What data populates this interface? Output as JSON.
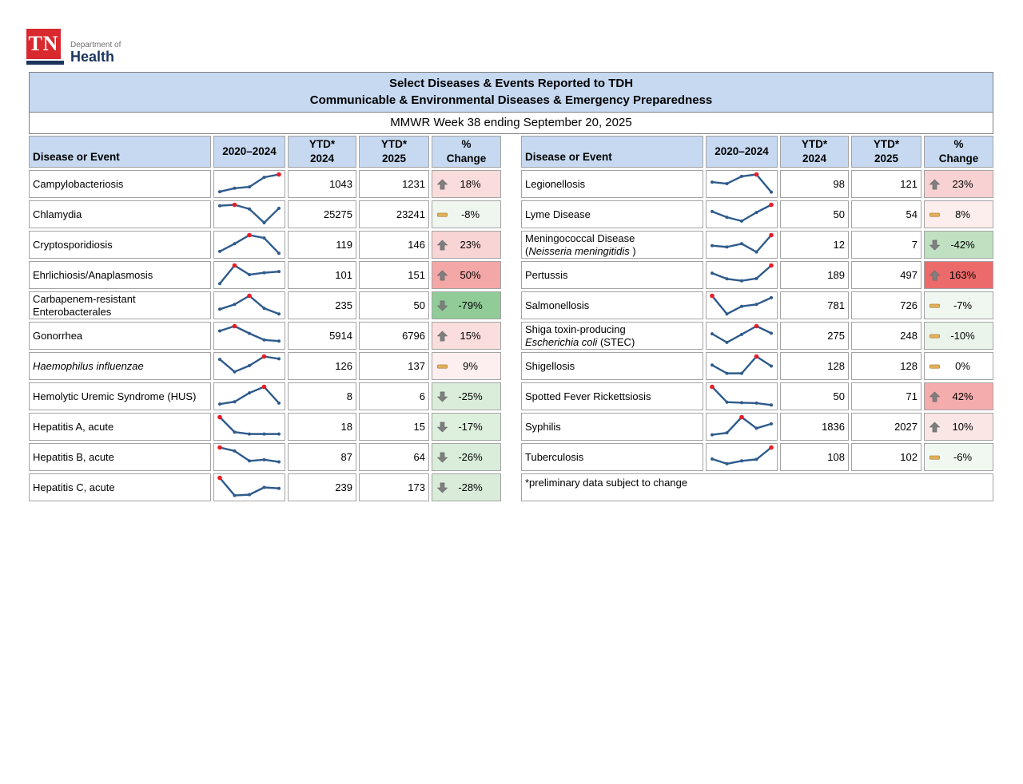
{
  "logo": {
    "tn": "TN",
    "dept": "Department of",
    "health": "Health"
  },
  "header": {
    "title_line1": "Select Diseases & Events Reported to TDH",
    "title_line2": "Communicable & Environmental Diseases & Emergency Preparedness",
    "subtitle": "MMWR Week 38 ending September 20, 2025"
  },
  "columns": {
    "disease": "Disease or Event",
    "spark": "2020–2024",
    "ytd_star": "YTD*",
    "y2024": "2024",
    "y2025": "2025",
    "pct_l1": "%",
    "pct_l2": "Change"
  },
  "footnote": "*preliminary data subject to change",
  "colors": {
    "header_blue": "#c6d9f1",
    "spark_line": "#2e5b8c",
    "spark_peak": "#eb1c24",
    "arrow_gray": "#7f7f7f",
    "arrow_edge": "#616161",
    "dash_fill": "#e2b05c",
    "dash_edge": "#b5873d",
    "logo_red": "#d8292f",
    "logo_navy": "#1b365d"
  },
  "tables": {
    "left": {
      "rows": [
        {
          "name_lines": [
            [
              {
                "t": "Campylobacteriosis",
                "i": false
              }
            ]
          ],
          "spark": [
            0.1,
            0.28,
            0.35,
            0.85,
            1.0
          ],
          "ytd2024": "1043",
          "ytd2025": "1231",
          "icon": "up",
          "pct": "18%",
          "bg": "#fadcdc"
        },
        {
          "name_lines": [
            [
              {
                "t": "Chlamydia",
                "i": false
              }
            ]
          ],
          "spark": [
            0.95,
            1.0,
            0.78,
            0.06,
            0.82
          ],
          "ytd2024": "25275",
          "ytd2025": "23241",
          "icon": "dash",
          "pct": "-8%",
          "bg": "#eff6f0"
        },
        {
          "name_lines": [
            [
              {
                "t": "Cryptosporidiosis",
                "i": false
              }
            ]
          ],
          "spark": [
            0.15,
            0.55,
            1.0,
            0.85,
            0.05
          ],
          "ytd2024": "119",
          "ytd2025": "146",
          "icon": "up",
          "pct": "23%",
          "bg": "#f9d4d4"
        },
        {
          "name_lines": [
            [
              {
                "t": "Ehrlichiosis/Anaplasmosis",
                "i": false
              }
            ]
          ],
          "spark": [
            0.05,
            1.0,
            0.52,
            0.62,
            0.68
          ],
          "ytd2024": "101",
          "ytd2025": "151",
          "icon": "up",
          "pct": "50%",
          "bg": "#f4a7a7"
        },
        {
          "name_lines": [
            [
              {
                "t": "Carbapenem-resistant",
                "i": false
              }
            ],
            [
              {
                "t": "Enterobacterales",
                "i": false
              }
            ]
          ],
          "spark": [
            0.3,
            0.55,
            1.0,
            0.35,
            0.05
          ],
          "ytd2024": "235",
          "ytd2025": "50",
          "icon": "down",
          "pct": "-79%",
          "bg": "#90cb98"
        },
        {
          "name_lines": [
            [
              {
                "t": "Gonorrhea",
                "i": false
              }
            ]
          ],
          "spark": [
            0.75,
            1.0,
            0.62,
            0.28,
            0.22
          ],
          "ytd2024": "5914",
          "ytd2025": "6796",
          "icon": "up",
          "pct": "15%",
          "bg": "#fadddd"
        },
        {
          "name_lines": [
            [
              {
                "t": "Haemophilus influenzae",
                "i": true
              }
            ]
          ],
          "spark": [
            0.85,
            0.2,
            0.52,
            1.0,
            0.88
          ],
          "ytd2024": "126",
          "ytd2025": "137",
          "icon": "dash",
          "pct": "9%",
          "bg": "#fdefef"
        },
        {
          "name_lines": [
            [
              {
                "t": "Hemolytic Uremic Syndrome (HUS)",
                "i": false
              }
            ]
          ],
          "spark": [
            0.1,
            0.22,
            0.68,
            1.0,
            0.15
          ],
          "ytd2024": "8",
          "ytd2025": "6",
          "icon": "down",
          "pct": "-25%",
          "bg": "#d9edda"
        },
        {
          "name_lines": [
            [
              {
                "t": "Hepatitis A, acute",
                "i": false
              }
            ]
          ],
          "spark": [
            1.0,
            0.22,
            0.12,
            0.12,
            0.12
          ],
          "ytd2024": "18",
          "ytd2025": "15",
          "icon": "down",
          "pct": "-17%",
          "bg": "#ddefdd"
        },
        {
          "name_lines": [
            [
              {
                "t": "Hepatitis B, acute",
                "i": false
              }
            ]
          ],
          "spark": [
            1.0,
            0.82,
            0.3,
            0.36,
            0.25
          ],
          "ytd2024": "87",
          "ytd2025": "64",
          "icon": "down",
          "pct": "-26%",
          "bg": "#d9edda"
        },
        {
          "name_lines": [
            [
              {
                "t": "Hepatitis C, acute",
                "i": false
              }
            ]
          ],
          "spark": [
            1.0,
            0.08,
            0.12,
            0.5,
            0.45
          ],
          "ytd2024": "239",
          "ytd2025": "173",
          "icon": "down",
          "pct": "-28%",
          "bg": "#d8ecd9"
        }
      ]
    },
    "right": {
      "rows": [
        {
          "name_lines": [
            [
              {
                "t": "Legionellosis",
                "i": false
              }
            ]
          ],
          "spark": [
            0.6,
            0.52,
            0.9,
            1.0,
            0.08
          ],
          "ytd2024": "98",
          "ytd2025": "121",
          "icon": "up",
          "pct": "23%",
          "bg": "#f8d2d2"
        },
        {
          "name_lines": [
            [
              {
                "t": "Lyme Disease",
                "i": false
              }
            ]
          ],
          "spark": [
            0.65,
            0.35,
            0.15,
            0.6,
            1.0
          ],
          "ytd2024": "50",
          "ytd2025": "54",
          "icon": "dash",
          "pct": "8%",
          "bg": "#fdeeee"
        },
        {
          "name_lines": [
            [
              {
                "t": "Meningococcal Disease",
                "i": false
              }
            ],
            [
              {
                "t": "(",
                "i": false
              },
              {
                "t": "Neisseria meningitidis",
                "i": true
              },
              {
                "t": " )",
                "i": false
              }
            ]
          ],
          "spark": [
            0.45,
            0.38,
            0.55,
            0.12,
            1.0
          ],
          "ytd2024": "12",
          "ytd2025": "7",
          "icon": "down",
          "pct": "-42%",
          "bg": "#bfe1c1"
        },
        {
          "name_lines": [
            [
              {
                "t": "Pertussis",
                "i": false
              }
            ]
          ],
          "spark": [
            0.6,
            0.3,
            0.2,
            0.32,
            1.0
          ],
          "ytd2024": "189",
          "ytd2025": "497",
          "icon": "up",
          "pct": "163%",
          "bg": "#ec6a6a"
        },
        {
          "name_lines": [
            [
              {
                "t": "Salmonellosis",
                "i": false
              }
            ]
          ],
          "spark": [
            1.0,
            0.05,
            0.45,
            0.55,
            0.9
          ],
          "ytd2024": "781",
          "ytd2025": "726",
          "icon": "dash",
          "pct": "-7%",
          "bg": "#f0f7f0"
        },
        {
          "name_lines": [
            [
              {
                "t": "Shiga toxin-producing",
                "i": false
              }
            ],
            [
              {
                "t": "Escherichia coli",
                "i": true
              },
              {
                "t": " (STEC)",
                "i": false
              }
            ]
          ],
          "spark": [
            0.6,
            0.15,
            0.57,
            1.0,
            0.63
          ],
          "ytd2024": "275",
          "ytd2025": "248",
          "icon": "dash",
          "pct": "-10%",
          "bg": "#eaf4ea"
        },
        {
          "name_lines": [
            [
              {
                "t": "Shigellosis",
                "i": false
              }
            ]
          ],
          "spark": [
            0.55,
            0.12,
            0.12,
            1.0,
            0.5
          ],
          "ytd2024": "128",
          "ytd2025": "128",
          "icon": "dash",
          "pct": "0%",
          "bg": "#ffffff"
        },
        {
          "name_lines": [
            [
              {
                "t": "Spotted Fever Rickettsiosis",
                "i": false
              }
            ]
          ],
          "spark": [
            1.0,
            0.2,
            0.17,
            0.15,
            0.05
          ],
          "ytd2024": "50",
          "ytd2025": "71",
          "icon": "up",
          "pct": "42%",
          "bg": "#f5acac"
        },
        {
          "name_lines": [
            [
              {
                "t": "Syphilis",
                "i": false
              }
            ]
          ],
          "spark": [
            0.08,
            0.18,
            1.0,
            0.42,
            0.65
          ],
          "ytd2024": "1836",
          "ytd2025": "2027",
          "icon": "up",
          "pct": "10%",
          "bg": "#fbe6e6"
        },
        {
          "name_lines": [
            [
              {
                "t": "Tuberculosis",
                "i": false
              }
            ]
          ],
          "spark": [
            0.4,
            0.15,
            0.3,
            0.38,
            1.0
          ],
          "ytd2024": "108",
          "ytd2025": "102",
          "icon": "dash",
          "pct": "-6%",
          "bg": "#f1f8f1"
        }
      ]
    }
  }
}
